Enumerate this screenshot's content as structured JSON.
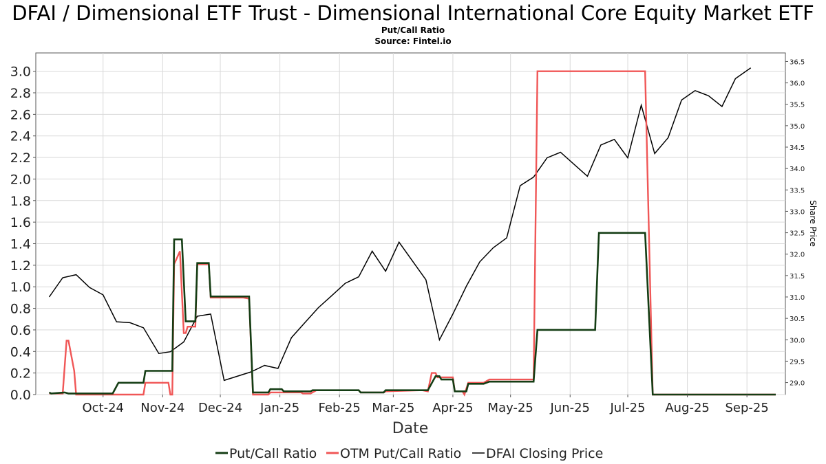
{
  "chart_data": {
    "type": "line",
    "title": "DFAI / Dimensional ETF Trust - Dimensional International Core Equity Market ETF",
    "subtitle": "Put/Call Ratio",
    "source": "Source: Fintel.io",
    "xlabel": "Date",
    "ylabel": "",
    "y2label": "Share Price",
    "x_ticks": [
      "Oct-24",
      "Nov-24",
      "Dec-24",
      "Jan-25",
      "Feb-25",
      "Mar-25",
      "Apr-25",
      "May-25",
      "Jun-25",
      "Jul-25",
      "Aug-25",
      "Sep-25"
    ],
    "y_ticks": [
      "0.0",
      "0.2",
      "0.4",
      "0.6",
      "0.8",
      "1.0",
      "1.2",
      "1.4",
      "1.6",
      "1.8",
      "2.0",
      "2.2",
      "2.4",
      "2.6",
      "2.8",
      "3.0"
    ],
    "y2_ticks": [
      "29.0",
      "29.5",
      "30.0",
      "30.5",
      "31.0",
      "31.5",
      "32.0",
      "32.5",
      "33.0",
      "33.5",
      "34.0",
      "34.5",
      "35.0",
      "35.5",
      "36.0",
      "36.5"
    ],
    "ylim": [
      0,
      3.17
    ],
    "y2lim": [
      28.72,
      36.7
    ],
    "grid": true,
    "legend": "bottom",
    "colors": {
      "put_call": "#143d14",
      "otm": "#f05656",
      "price": "#000000"
    },
    "series": [
      {
        "name": "Put/Call Ratio",
        "axis": "left",
        "points": [
          [
            "2024-09-17",
            0.02
          ],
          [
            "2024-09-18",
            0.01
          ],
          [
            "2024-09-25",
            0.02
          ],
          [
            "2024-09-27",
            0.01
          ],
          [
            "2024-10-20",
            0.01
          ],
          [
            "2024-10-23",
            0.11
          ],
          [
            "2024-11-05",
            0.11
          ],
          [
            "2024-11-06",
            0.22
          ],
          [
            "2024-11-20",
            0.22
          ],
          [
            "2024-11-21",
            1.44
          ],
          [
            "2024-11-25",
            1.44
          ],
          [
            "2024-11-27",
            0.68
          ],
          [
            "2024-12-02",
            0.68
          ],
          [
            "2024-12-03",
            1.22
          ],
          [
            "2024-12-09",
            1.22
          ],
          [
            "2024-12-10",
            0.91
          ],
          [
            "2024-12-30",
            0.91
          ],
          [
            "2025-01-01",
            0.02
          ],
          [
            "2025-01-09",
            0.02
          ],
          [
            "2025-01-10",
            0.05
          ],
          [
            "2025-01-16",
            0.05
          ],
          [
            "2025-01-17",
            0.03
          ],
          [
            "2025-01-31",
            0.03
          ],
          [
            "2025-02-01",
            0.04
          ],
          [
            "2025-02-25",
            0.04
          ],
          [
            "2025-02-26",
            0.02
          ],
          [
            "2025-03-10",
            0.02
          ],
          [
            "2025-03-11",
            0.04
          ],
          [
            "2025-03-26",
            0.04
          ],
          [
            "2025-04-02",
            0.04
          ],
          [
            "2025-04-06",
            0.17
          ],
          [
            "2025-04-08",
            0.17
          ],
          [
            "2025-04-09",
            0.14
          ],
          [
            "2025-04-15",
            0.14
          ],
          [
            "2025-04-16",
            0.03
          ],
          [
            "2025-04-22",
            0.03
          ],
          [
            "2025-04-23",
            0.1
          ],
          [
            "2025-05-01",
            0.1
          ],
          [
            "2025-05-04",
            0.12
          ],
          [
            "2025-05-27",
            0.12
          ],
          [
            "2025-05-29",
            0.6
          ],
          [
            "2025-06-28",
            0.6
          ],
          [
            "2025-06-30",
            1.5
          ],
          [
            "2025-07-24",
            1.5
          ],
          [
            "2025-07-28",
            0.0
          ],
          [
            "2025-09-30",
            0.0
          ]
        ]
      },
      {
        "name": "OTM Put/Call Ratio",
        "axis": "left",
        "points": [
          [
            "2024-09-17",
            0.01
          ],
          [
            "2024-09-24",
            0.01
          ],
          [
            "2024-09-26",
            0.5
          ],
          [
            "2024-09-27",
            0.5
          ],
          [
            "2024-09-30",
            0.22
          ],
          [
            "2024-10-01",
            0.0
          ],
          [
            "2024-11-05",
            0.0
          ],
          [
            "2024-11-06",
            0.11
          ],
          [
            "2024-11-18",
            0.11
          ],
          [
            "2024-11-19",
            0.0
          ],
          [
            "2024-11-20",
            0.0
          ],
          [
            "2024-11-21",
            1.21
          ],
          [
            "2024-11-24",
            1.33
          ],
          [
            "2024-11-26",
            0.57
          ],
          [
            "2024-11-27",
            0.57
          ],
          [
            "2024-11-28",
            0.63
          ],
          [
            "2024-12-02",
            0.63
          ],
          [
            "2024-12-03",
            1.21
          ],
          [
            "2024-12-09",
            1.21
          ],
          [
            "2024-12-10",
            0.9
          ],
          [
            "2024-12-27",
            0.9
          ],
          [
            "2024-12-30",
            0.89
          ],
          [
            "2025-01-01",
            0.0
          ],
          [
            "2025-01-09",
            0.0
          ],
          [
            "2025-01-10",
            0.02
          ],
          [
            "2025-01-26",
            0.02
          ],
          [
            "2025-01-27",
            0.01
          ],
          [
            "2025-01-31",
            0.01
          ],
          [
            "2025-02-03",
            0.04
          ],
          [
            "2025-02-25",
            0.04
          ],
          [
            "2025-02-26",
            0.02
          ],
          [
            "2025-03-10",
            0.02
          ],
          [
            "2025-03-11",
            0.03
          ],
          [
            "2025-03-30",
            0.04
          ],
          [
            "2025-04-02",
            0.03
          ],
          [
            "2025-04-04",
            0.2
          ],
          [
            "2025-04-06",
            0.2
          ],
          [
            "2025-04-07",
            0.16
          ],
          [
            "2025-04-15",
            0.16
          ],
          [
            "2025-04-16",
            0.03
          ],
          [
            "2025-04-20",
            0.03
          ],
          [
            "2025-04-21",
            0.0
          ],
          [
            "2025-04-23",
            0.11
          ],
          [
            "2025-05-01",
            0.11
          ],
          [
            "2025-05-04",
            0.14
          ],
          [
            "2025-05-27",
            0.14
          ],
          [
            "2025-05-29",
            3.0
          ],
          [
            "2025-07-24",
            3.0
          ],
          [
            "2025-07-28",
            0.0
          ],
          [
            "2025-09-30",
            0.0
          ]
        ]
      },
      {
        "name": "DFAI Closing Price",
        "axis": "right",
        "points": [
          [
            "2024-09-17",
            31.0
          ],
          [
            "2024-09-24",
            31.45
          ],
          [
            "2024-10-01",
            31.52
          ],
          [
            "2024-10-08",
            31.22
          ],
          [
            "2024-10-15",
            31.05
          ],
          [
            "2024-10-22",
            30.42
          ],
          [
            "2024-10-29",
            30.4
          ],
          [
            "2024-11-05",
            30.28
          ],
          [
            "2024-11-13",
            29.68
          ],
          [
            "2024-11-19",
            29.72
          ],
          [
            "2024-11-26",
            29.95
          ],
          [
            "2024-12-03",
            30.55
          ],
          [
            "2024-12-10",
            30.6
          ],
          [
            "2024-12-17",
            29.05
          ],
          [
            "2024-12-31",
            29.25
          ],
          [
            "2025-01-07",
            29.4
          ],
          [
            "2025-01-14",
            29.33
          ],
          [
            "2025-01-21",
            30.05
          ],
          [
            "2025-01-28",
            30.4
          ],
          [
            "2025-02-04",
            30.75
          ],
          [
            "2025-02-11",
            31.03
          ],
          [
            "2025-02-18",
            31.32
          ],
          [
            "2025-02-25",
            31.47
          ],
          [
            "2025-03-04",
            32.07
          ],
          [
            "2025-03-11",
            31.6
          ],
          [
            "2025-03-18",
            32.28
          ],
          [
            "2025-04-01",
            31.4
          ],
          [
            "2025-04-08",
            30.0
          ],
          [
            "2025-04-15",
            30.6
          ],
          [
            "2025-04-22",
            31.25
          ],
          [
            "2025-04-29",
            31.82
          ],
          [
            "2025-05-06",
            32.15
          ],
          [
            "2025-05-13",
            32.38
          ],
          [
            "2025-05-20",
            33.6
          ],
          [
            "2025-05-27",
            33.8
          ],
          [
            "2025-06-03",
            34.25
          ],
          [
            "2025-06-10",
            34.38
          ],
          [
            "2025-06-24",
            33.82
          ],
          [
            "2025-07-01",
            34.55
          ],
          [
            "2025-07-08",
            34.68
          ],
          [
            "2025-07-15",
            34.25
          ],
          [
            "2025-07-22",
            35.48
          ],
          [
            "2025-07-29",
            34.35
          ],
          [
            "2025-08-05",
            34.72
          ],
          [
            "2025-08-12",
            35.6
          ],
          [
            "2025-08-19",
            35.82
          ],
          [
            "2025-08-26",
            35.7
          ],
          [
            "2025-09-02",
            35.45
          ],
          [
            "2025-09-09",
            36.1
          ],
          [
            "2025-09-17",
            36.35
          ]
        ]
      }
    ]
  }
}
